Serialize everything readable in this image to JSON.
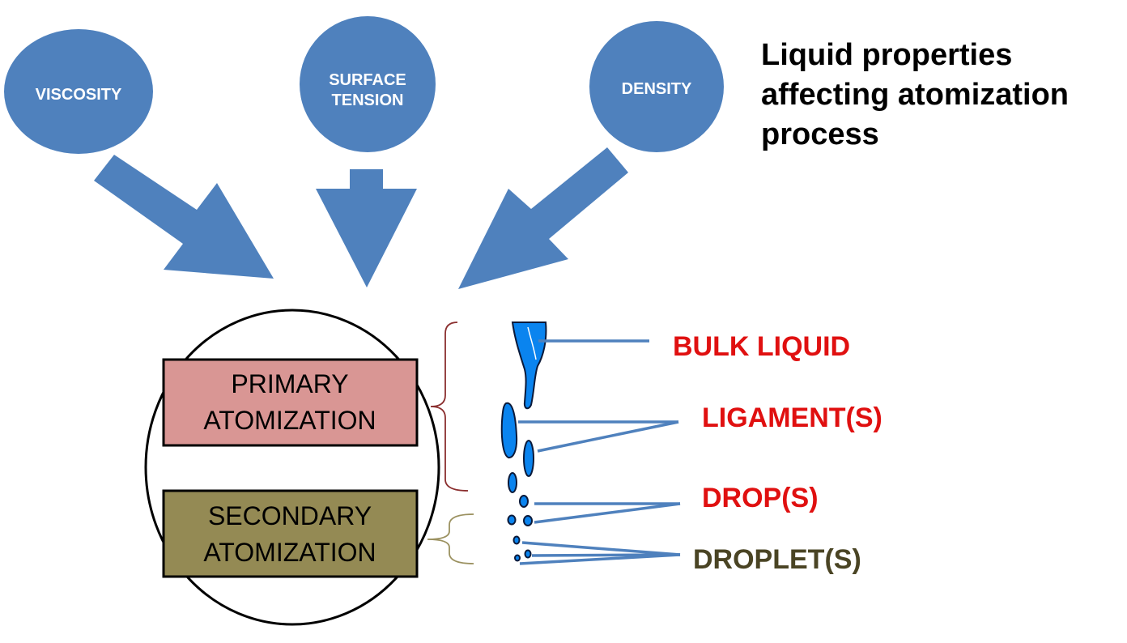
{
  "heading": {
    "lines": [
      "Liquid properties",
      "affecting atomization",
      "process"
    ]
  },
  "properties": [
    {
      "lines": [
        "VISCOSITY"
      ]
    },
    {
      "lines": [
        "SURFACE",
        "TENSION"
      ]
    },
    {
      "lines": [
        "DENSITY"
      ]
    }
  ],
  "stages": {
    "primary": {
      "lines": [
        "PRIMARY",
        "ATOMIZATION"
      ]
    },
    "secondary": {
      "lines": [
        "SECONDARY",
        "ATOMIZATION"
      ]
    }
  },
  "labels": {
    "bulk_liquid": "BULK LIQUID",
    "ligaments": "LIGAMENT(S)",
    "drops": "DROP(S)",
    "droplets": "DROPLET(S)"
  },
  "colors": {
    "property_fill": "#4f81bd",
    "arrow_fill": "#4f81bd",
    "primary_fill": "#d99694",
    "secondary_fill": "#948a54",
    "liquid_fill": "#0a84ef",
    "leader_line": "#4f81bd",
    "red_label": "#e01010",
    "droplet_label": "#4a4424",
    "primary_brace": "#8b2f2f",
    "secondary_brace": "#9b9160"
  }
}
